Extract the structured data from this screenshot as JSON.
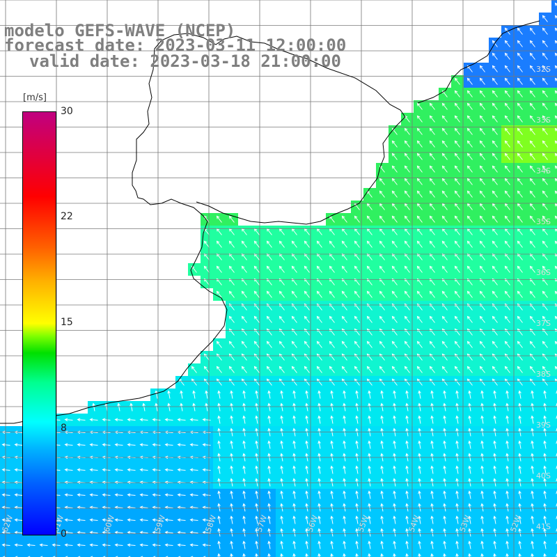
{
  "title": {
    "line1": "modelo GEFS-WAVE (NCEP)",
    "line2": "forecast date: 2023-03-11 12:00:00",
    "line3": "valid date: 2023-03-18 21:00:00"
  },
  "colorbar": {
    "unit": "[m/s]",
    "ticks": [
      "30",
      "22",
      "15",
      "8",
      "0"
    ],
    "min": 0,
    "max": 30,
    "colors": [
      "#0000ff",
      "#00b0ff",
      "#00ffff",
      "#00ff90",
      "#00e000",
      "#ffff00",
      "#ff6000",
      "#ff0000",
      "#c00080"
    ]
  },
  "grid": {
    "lat_labels": [
      "32S",
      "33S",
      "34S",
      "35S",
      "36S",
      "37S",
      "38S",
      "39S",
      "40S",
      "41S"
    ],
    "lon_labels": [
      "62W",
      "61W",
      "60W",
      "59W",
      "58W",
      "57W",
      "56W",
      "55W",
      "54W",
      "53W",
      "52W"
    ]
  },
  "colors": {
    "land": "#ffffff",
    "gridline": "#777777",
    "coastline": "#000000",
    "arrow": "#ffffff"
  }
}
